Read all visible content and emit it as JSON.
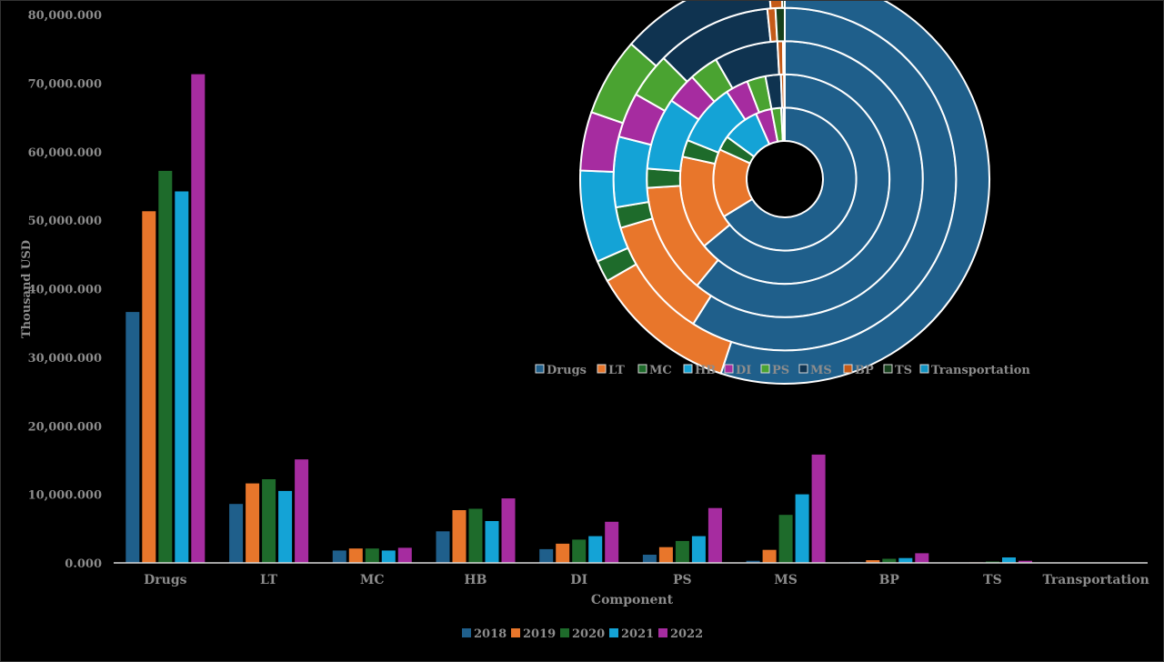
{
  "chart_data": [
    {
      "type": "bar",
      "xlabel": "Component",
      "ylabel": "Thousand USD",
      "ylim": [
        0,
        80000000
      ],
      "yticks": [
        "0.000",
        "10,000.000",
        "20,000.000",
        "30,000.000",
        "40,000.000",
        "50,000.000",
        "60,000.000",
        "70,000.000",
        "80,000.000"
      ],
      "categories": [
        "Drugs",
        "LT",
        "MC",
        "HB",
        "DI",
        "PS",
        "MS",
        "BP",
        "TS",
        "Transportation"
      ],
      "series": [
        {
          "name": "2018",
          "color": "#1f5f8b",
          "values": [
            36600000,
            8600000,
            1800000,
            4600000,
            2000000,
            1200000,
            300000,
            100000,
            50000,
            0
          ]
        },
        {
          "name": "2019",
          "color": "#e8762b",
          "values": [
            51300000,
            11600000,
            2100000,
            7700000,
            2800000,
            2300000,
            1900000,
            400000,
            80000,
            0
          ]
        },
        {
          "name": "2020",
          "color": "#1e6b2b",
          "values": [
            57200000,
            12200000,
            2100000,
            7900000,
            3400000,
            3200000,
            7000000,
            600000,
            200000,
            0
          ]
        },
        {
          "name": "2021",
          "color": "#14a3d6",
          "values": [
            54200000,
            10500000,
            1800000,
            6100000,
            3900000,
            3900000,
            10000000,
            700000,
            800000,
            0
          ]
        },
        {
          "name": "2022",
          "color": "#a62ca0",
          "values": [
            71300000,
            15100000,
            2200000,
            9400000,
            6000000,
            8000000,
            15800000,
            1400000,
            300000,
            0
          ]
        }
      ],
      "grid": false,
      "legend_position": "bottom"
    },
    {
      "type": "pie",
      "variant": "multi-ring doughnut",
      "rings": [
        "2018",
        "2019",
        "2020",
        "2021",
        "2022"
      ],
      "categories": [
        "Drugs",
        "LT",
        "MC",
        "HB",
        "DI",
        "PS",
        "MS",
        "BP",
        "TS",
        "Transportation"
      ],
      "colors": [
        "#1f5f8b",
        "#e8762b",
        "#1e6b2b",
        "#14a3d6",
        "#a62ca0",
        "#4aa331",
        "#0f3350",
        "#c45a18",
        "#16401c",
        "#1193c2"
      ],
      "legend_position": "below"
    }
  ]
}
